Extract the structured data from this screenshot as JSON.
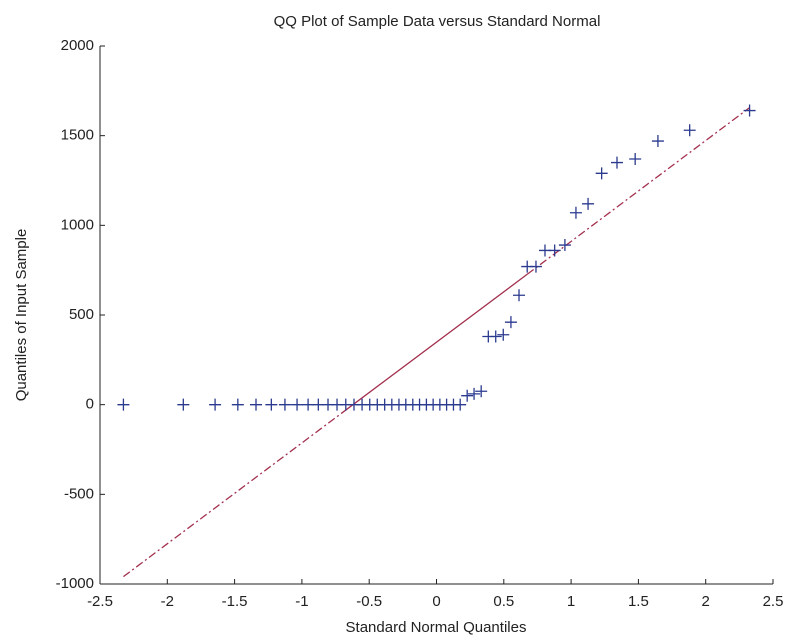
{
  "chart_data": {
    "type": "qqplot",
    "title": "QQ Plot of Sample Data versus Standard Normal",
    "x_label": "Standard Normal Quantiles",
    "y_label": "Quantiles of Input Sample",
    "x": [
      -2.326,
      -1.881,
      -1.645,
      -1.476,
      -1.341,
      -1.227,
      -1.126,
      -1.036,
      -0.954,
      -0.878,
      -0.806,
      -0.739,
      -0.674,
      -0.613,
      -0.553,
      -0.496,
      -0.44,
      -0.385,
      -0.332,
      -0.279,
      -0.228,
      -0.176,
      -0.126,
      -0.075,
      -0.025,
      0.025,
      0.075,
      0.126,
      0.176,
      0.228,
      0.279,
      0.332,
      0.385,
      0.44,
      0.496,
      0.553,
      0.613,
      0.674,
      0.739,
      0.806,
      0.878,
      0.954,
      1.036,
      1.126,
      1.227,
      1.341,
      1.476,
      1.645,
      1.881,
      2.326
    ],
    "values": [
      0,
      0,
      0,
      0,
      0,
      0,
      0,
      0,
      0,
      0,
      0,
      0,
      0,
      0,
      0,
      0,
      0,
      0,
      0,
      0,
      0,
      0,
      0,
      0,
      0,
      0,
      0,
      0,
      0,
      50,
      60,
      75,
      380,
      380,
      390,
      460,
      610,
      770,
      770,
      860,
      860,
      890,
      1070,
      1120,
      1290,
      1350,
      1370,
      1470,
      1530,
      1640
    ],
    "color": "#2b3a8f",
    "reference_line": {
      "x": [
        -2.326,
        -0.674,
        0.674,
        2.326
      ],
      "y": [
        -959,
        -30,
        727,
        1656
      ],
      "color": "#a3304e"
    },
    "xlim": [
      -2.5,
      2.5
    ],
    "ylim": [
      -1000,
      2000
    ],
    "xticks": [
      -2.5,
      -2,
      -1.5,
      -1,
      -0.5,
      0,
      0.5,
      1,
      1.5,
      2,
      2.5
    ],
    "yticks": [
      -1000,
      -500,
      0,
      500,
      1000,
      1500,
      2000
    ],
    "grid": false
  }
}
